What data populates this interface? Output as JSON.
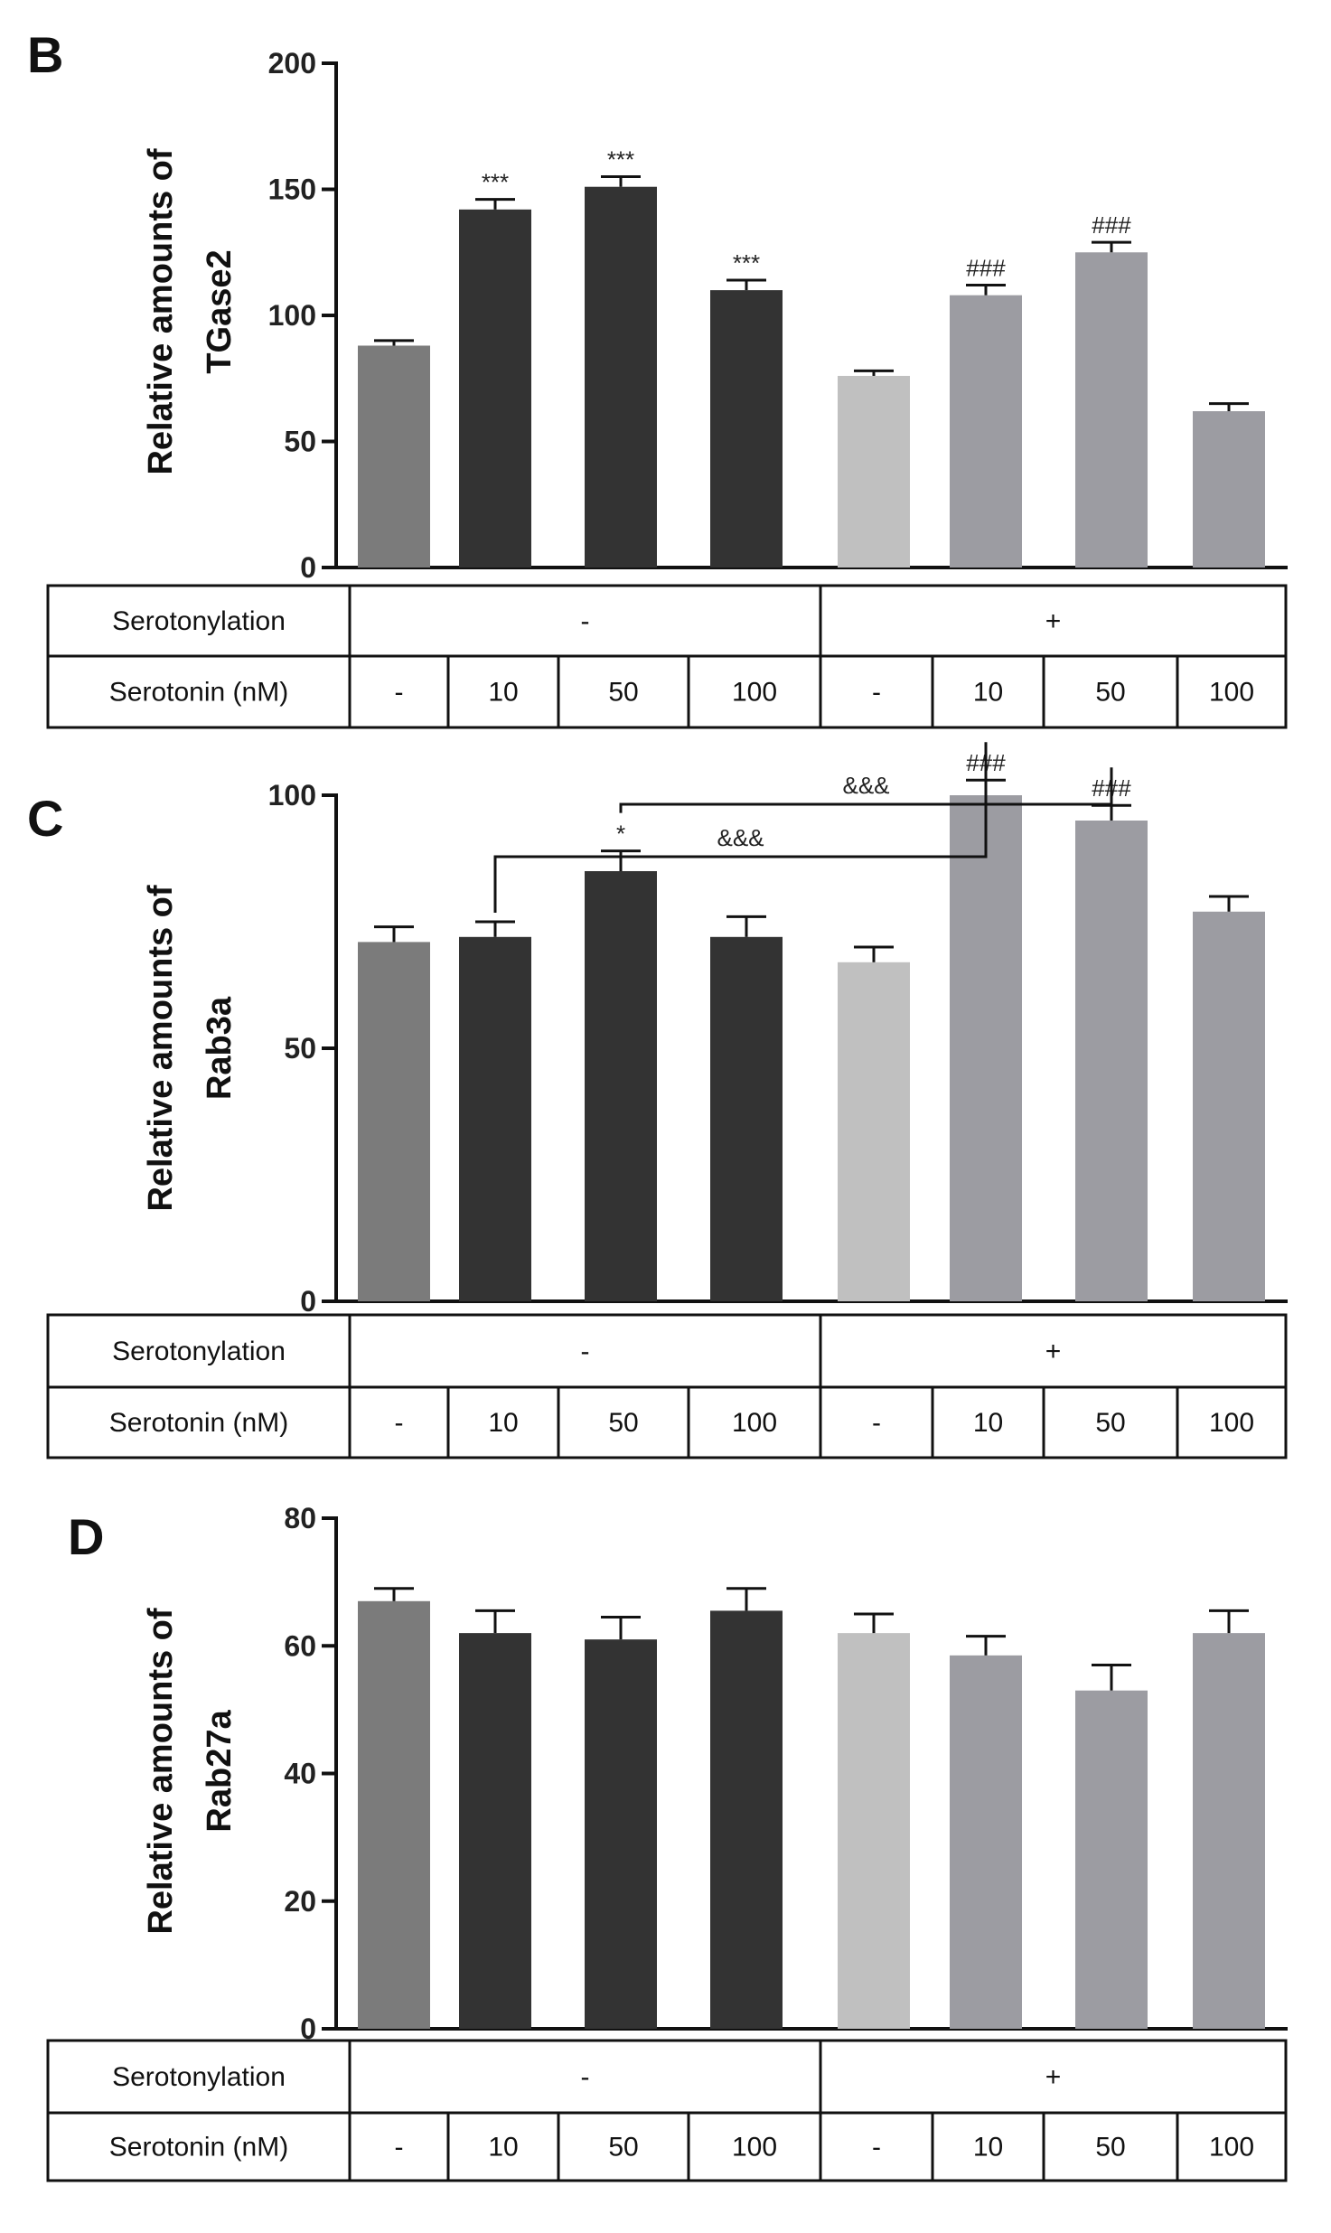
{
  "chart_data": [
    {
      "panel": "B",
      "type": "bar",
      "ylabel": [
        "Relative amounts of",
        "TGase2"
      ],
      "ylim": [
        0,
        200
      ],
      "yticks": [
        0,
        50,
        100,
        150,
        200
      ],
      "values": [
        88,
        142,
        151,
        110,
        76,
        108,
        125,
        62
      ],
      "errors": [
        2,
        4,
        4,
        4,
        2,
        4,
        4,
        3
      ],
      "significance": [
        "",
        "***",
        "***",
        "***",
        "",
        "###",
        "###",
        ""
      ],
      "brackets": []
    },
    {
      "panel": "C",
      "type": "bar",
      "ylabel": [
        "Relative amounts of",
        "Rab3a"
      ],
      "ylim": [
        0,
        100
      ],
      "yticks": [
        0,
        50,
        100
      ],
      "values": [
        71,
        72,
        85,
        72,
        67,
        100,
        95,
        77
      ],
      "errors": [
        3,
        3,
        4,
        4,
        3,
        3,
        3,
        3
      ],
      "significance": [
        "",
        "",
        "*",
        "",
        "",
        "###",
        "###",
        ""
      ],
      "brackets": [
        {
          "from": 1,
          "to": 5,
          "label": "&&&",
          "level": 1
        },
        {
          "from": 2,
          "to": 6,
          "label": "&&&",
          "level": 2
        }
      ]
    },
    {
      "panel": "D",
      "type": "bar",
      "ylabel": [
        "Relative amounts of",
        "Rab27a"
      ],
      "ylim": [
        0,
        80
      ],
      "yticks": [
        0,
        20,
        40,
        60,
        80
      ],
      "values": [
        67,
        62,
        61,
        65.5,
        62,
        58.5,
        53,
        62
      ],
      "errors": [
        2,
        3.5,
        3.5,
        3.5,
        3,
        3,
        4,
        3.5
      ],
      "significance": [
        "",
        "",
        "",
        "",
        "",
        "",
        "",
        ""
      ],
      "brackets": []
    }
  ],
  "bar_colors": [
    "#7b7b7b",
    "#333333",
    "#333333",
    "#333333",
    "#c0c0c0",
    "#9c9ca2",
    "#9c9ca2",
    "#9c9ca2"
  ],
  "table": {
    "row1_label": "Serotonylation",
    "group_minus": "-",
    "group_plus": "+",
    "row2_label": "Serotonin (nM)",
    "concentrations": [
      "-",
      "10",
      "50",
      "100",
      "-",
      "10",
      "50",
      "100"
    ]
  }
}
